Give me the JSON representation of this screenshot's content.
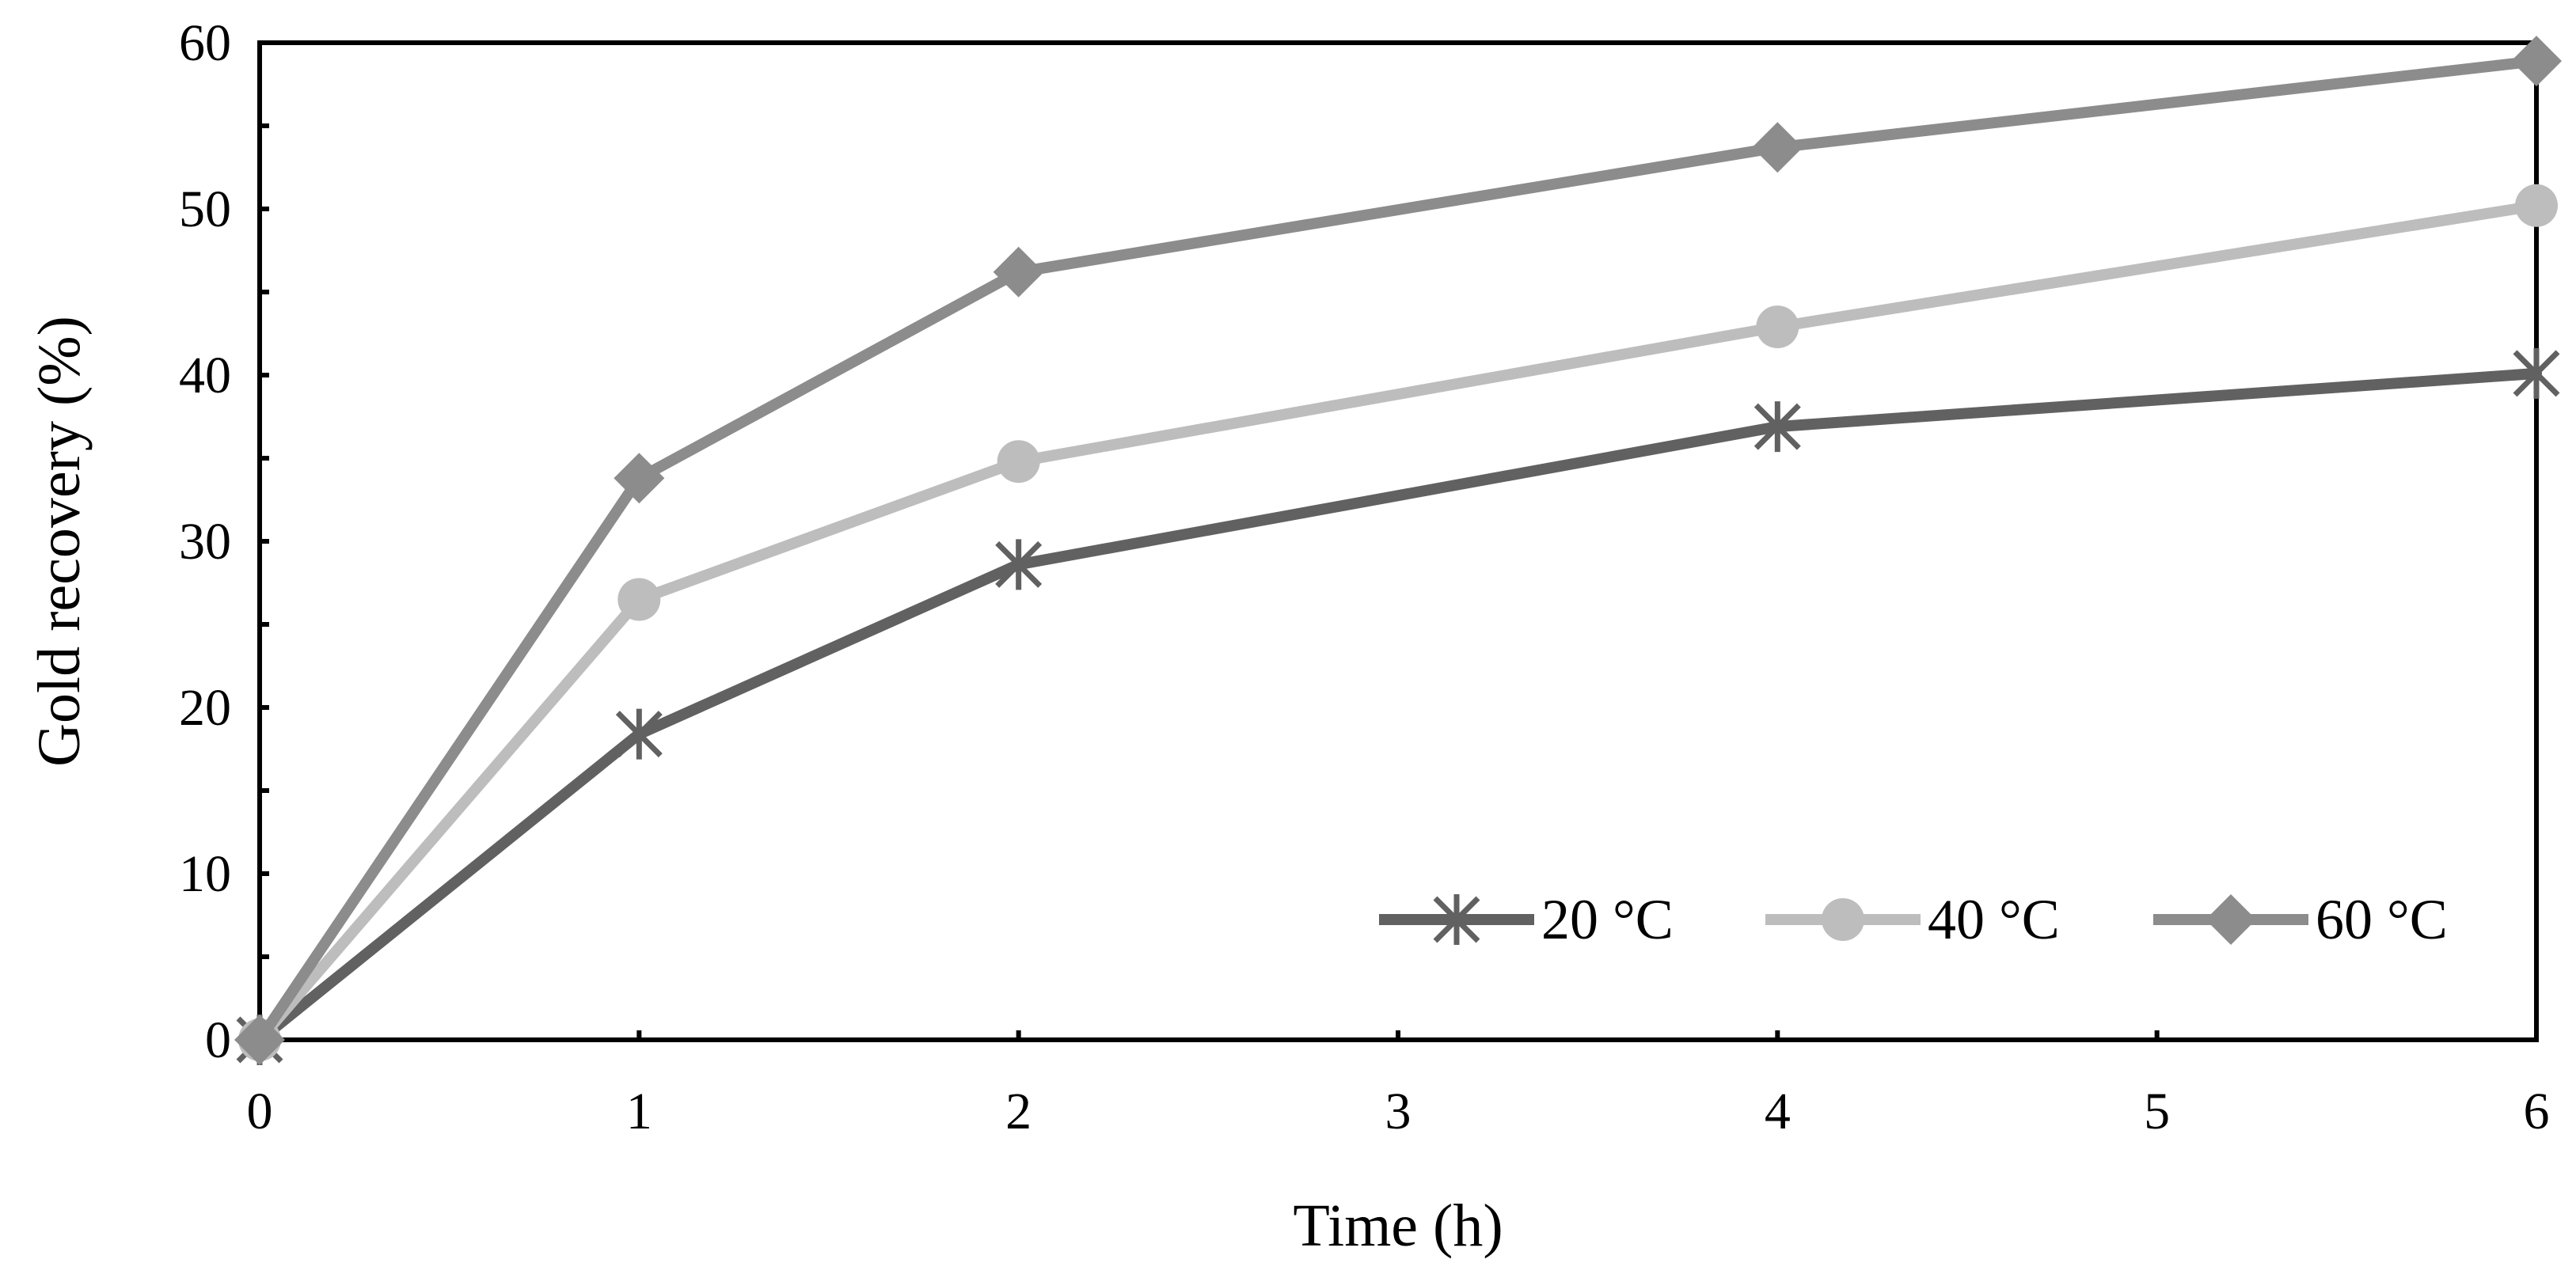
{
  "chart_data": {
    "type": "line",
    "title": "",
    "xlabel": "Time (h)",
    "ylabel": "Gold recovery (%)",
    "xlim": [
      0,
      6
    ],
    "ylim": [
      0,
      60
    ],
    "xticks": [
      0,
      1,
      2,
      3,
      4,
      5,
      6
    ],
    "yticks": [
      0,
      10,
      20,
      30,
      40,
      50,
      60
    ],
    "yminor_step": 5,
    "grid": false,
    "legend_position": "bottom-right",
    "x": [
      0,
      1,
      2,
      4,
      6
    ],
    "series": [
      {
        "name": "20 °C",
        "marker": "asterisk",
        "color": "#616161",
        "values": [
          0,
          18.4,
          28.6,
          36.9,
          40.1
        ]
      },
      {
        "name": "40 °C",
        "marker": "circle",
        "color": "#bdbdbd",
        "values": [
          0,
          26.5,
          34.8,
          42.9,
          50.2
        ]
      },
      {
        "name": "60 °C",
        "marker": "diamond",
        "color": "#8c8c8c",
        "values": [
          0,
          33.8,
          46.2,
          53.7,
          58.9
        ]
      }
    ]
  }
}
